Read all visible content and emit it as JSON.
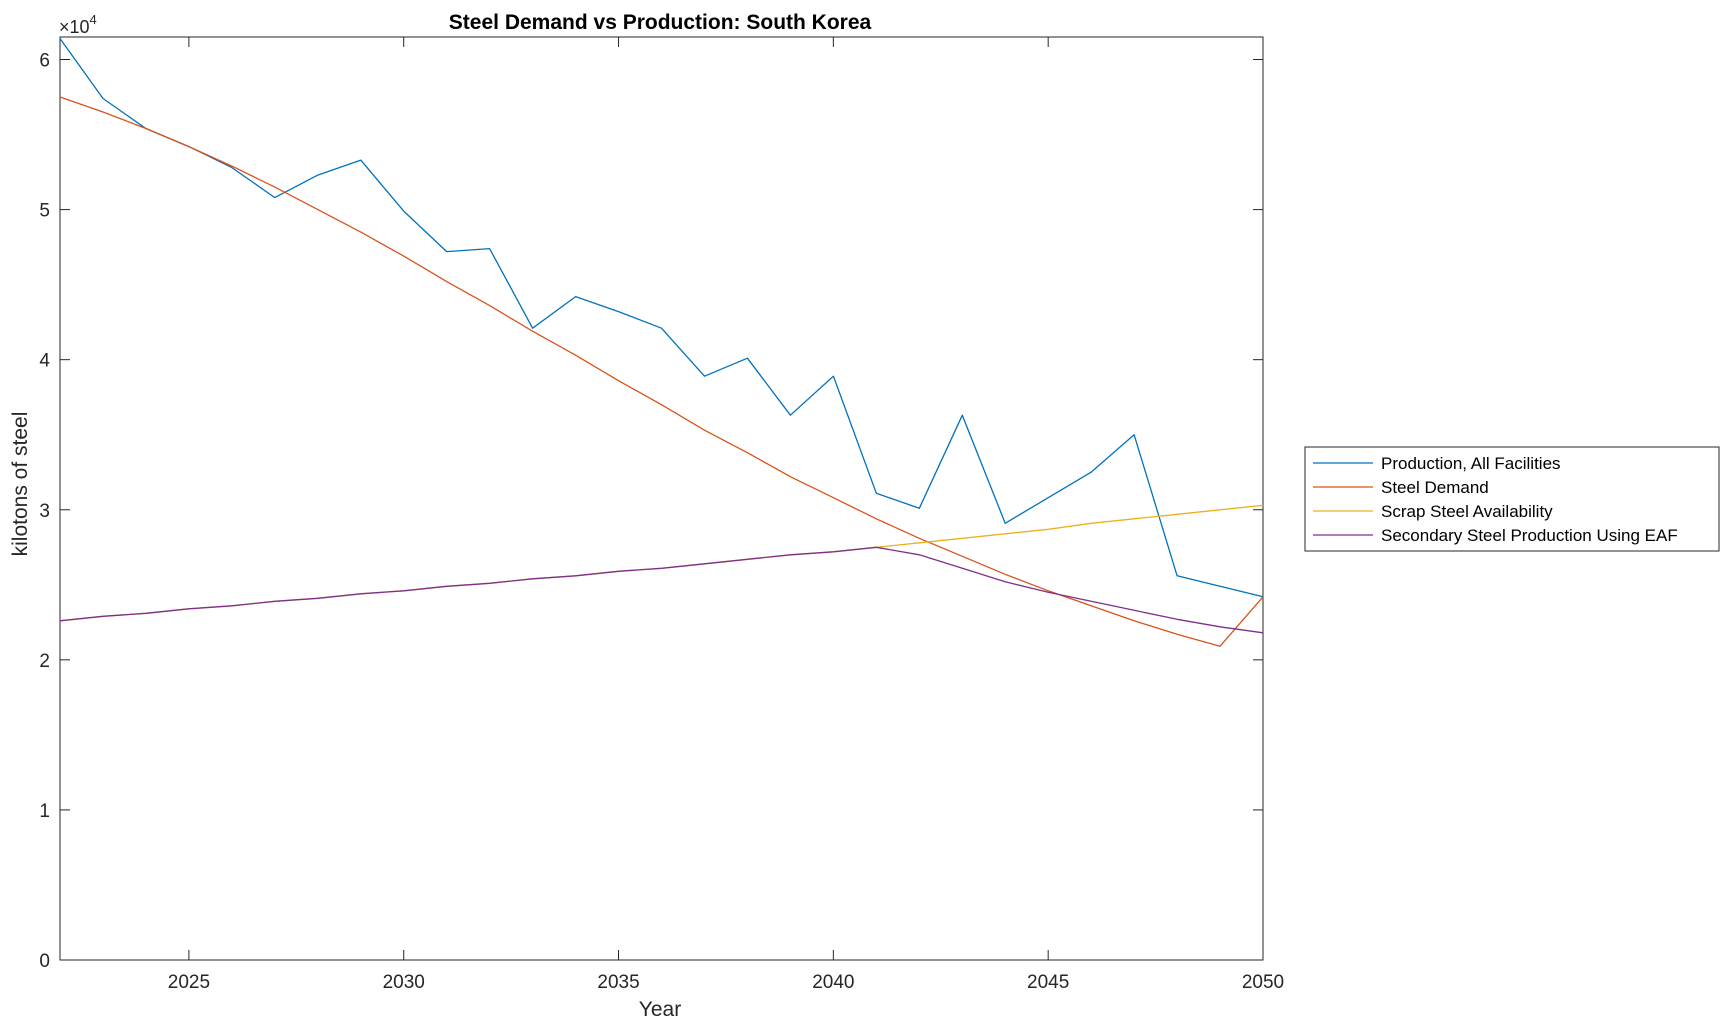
{
  "chart_data": {
    "type": "line",
    "title": "Steel Demand vs Production: South Korea",
    "xlabel": "Year",
    "ylabel": "kilotons of steel",
    "xlim": [
      2022,
      2050
    ],
    "ylim": [
      0,
      61500
    ],
    "x_ticks": [
      2025,
      2030,
      2035,
      2040,
      2045,
      2050
    ],
    "x_tick_labels": [
      "2025",
      "2030",
      "2035",
      "2040",
      "2045",
      "2050"
    ],
    "y_ticks": [
      0,
      10000,
      20000,
      30000,
      40000,
      50000,
      60000
    ],
    "y_tick_labels": [
      "0",
      "1",
      "2",
      "3",
      "4",
      "5",
      "6"
    ],
    "y_multiplier_base": "10",
    "y_multiplier_exponent": "4",
    "grid": false,
    "legend_placement": "outside-right",
    "x": [
      2022,
      2023,
      2024,
      2025,
      2026,
      2027,
      2028,
      2029,
      2030,
      2031,
      2032,
      2033,
      2034,
      2035,
      2036,
      2037,
      2038,
      2039,
      2040,
      2041,
      2042,
      2043,
      2044,
      2045,
      2046,
      2047,
      2048,
      2049,
      2050
    ],
    "series": [
      {
        "name": "Production, All Facilities",
        "color": "#0072BD",
        "values": [
          61400,
          57400,
          55400,
          54200,
          52800,
          50800,
          52300,
          53300,
          49900,
          47200,
          47400,
          42100,
          44200,
          43200,
          42100,
          38900,
          40100,
          36300,
          38900,
          31100,
          30100,
          36300,
          29100,
          30800,
          32500,
          35000,
          25600,
          24900,
          24200
        ]
      },
      {
        "name": "Steel Demand",
        "color": "#D95319",
        "values": [
          57500,
          56500,
          55400,
          54200,
          52900,
          51500,
          50000,
          48500,
          46900,
          45200,
          43600,
          41900,
          40300,
          38600,
          37000,
          35300,
          33800,
          32200,
          30800,
          29400,
          28100,
          26900,
          25700,
          24600,
          23600,
          22600,
          21700,
          20900,
          24200
        ]
      },
      {
        "name": "Scrap Steel Availability",
        "color": "#EDB120",
        "values": [
          22600,
          22900,
          23100,
          23400,
          23600,
          23900,
          24100,
          24400,
          24600,
          24900,
          25100,
          25400,
          25600,
          25900,
          26100,
          26400,
          26700,
          27000,
          27200,
          27500,
          27800,
          28100,
          28400,
          28700,
          29100,
          29400,
          29700,
          30000,
          30300
        ]
      },
      {
        "name": "Secondary Steel Production Using EAF",
        "color": "#7E2F8E",
        "values": [
          22600,
          22900,
          23100,
          23400,
          23600,
          23900,
          24100,
          24400,
          24600,
          24900,
          25100,
          25400,
          25600,
          25900,
          26100,
          26400,
          26700,
          27000,
          27200,
          27500,
          27000,
          26100,
          25200,
          24500,
          23900,
          23300,
          22700,
          22200,
          21800
        ]
      }
    ]
  }
}
